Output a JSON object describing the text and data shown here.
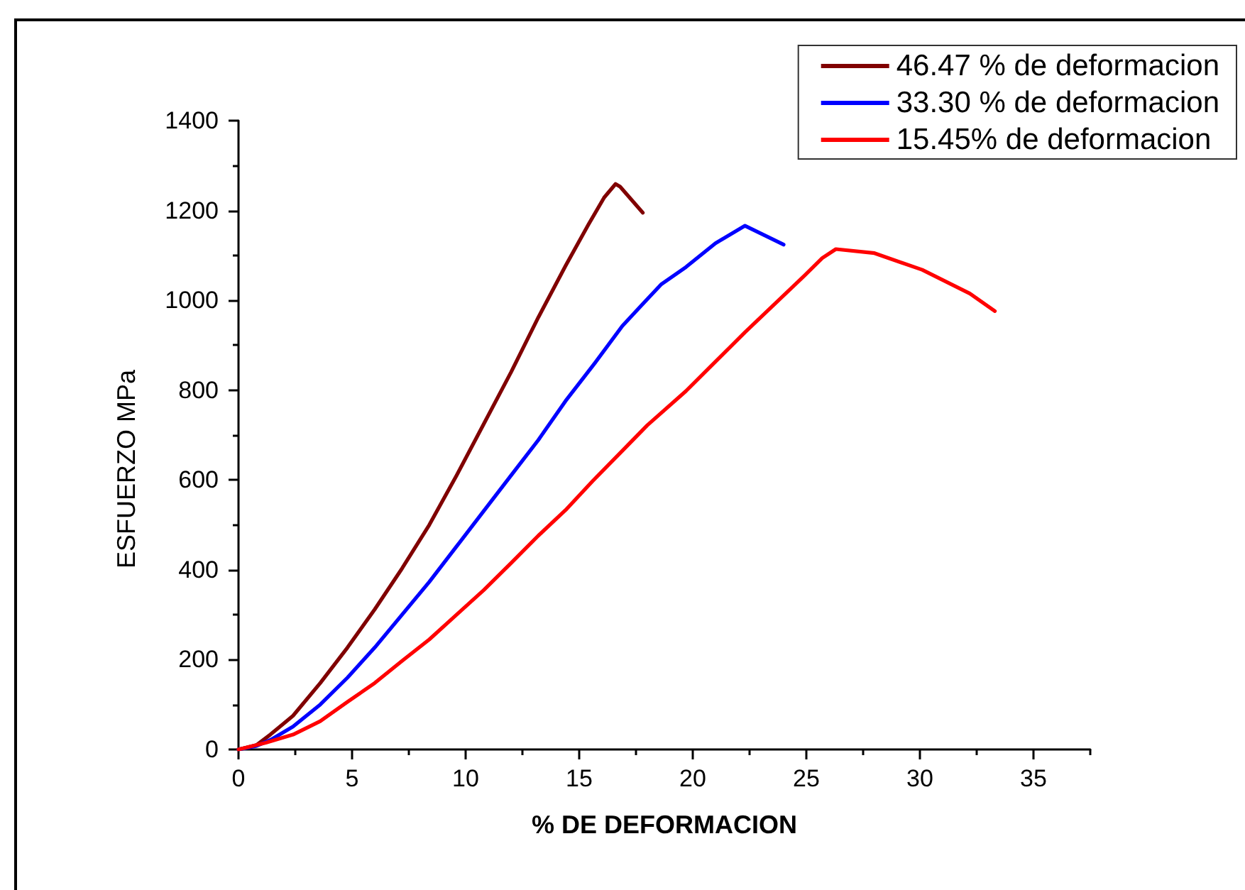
{
  "chart_data": {
    "type": "line",
    "xlabel": "% DE DEFORMACION",
    "ylabel": "ESFUERZO MPa",
    "xlim": [
      0,
      37.5
    ],
    "ylim": [
      0,
      1400
    ],
    "xticks": [
      0,
      {
        "value": 2.5,
        "label": null
      },
      5,
      {
        "value": 7.5,
        "label": null
      },
      10,
      {
        "value": 12.5,
        "label": null
      },
      15,
      {
        "value": 17.5,
        "label": null
      },
      20,
      {
        "value": 22.5,
        "label": null
      },
      25,
      {
        "value": 27.5,
        "label": null
      },
      30,
      {
        "value": 32.5,
        "label": null
      },
      35,
      {
        "value": 37.5,
        "label": null
      }
    ],
    "yticks": [
      0,
      {
        "value": 100,
        "label": null
      },
      200,
      {
        "value": 300,
        "label": null
      },
      400,
      {
        "value": 500,
        "label": null
      },
      600,
      {
        "value": 700,
        "label": null
      },
      800,
      {
        "value": 900,
        "label": null
      },
      1000,
      {
        "value": 1100,
        "label": null
      },
      1200,
      {
        "value": 1300,
        "label": null
      },
      1400
    ],
    "grid": false,
    "legend": "top right",
    "marker": "none",
    "line_style": "solid",
    "series": [
      {
        "name": "46.47 % de deformacion",
        "color": "#800000",
        "x": [
          0,
          0.8,
          1.4,
          2.4,
          3.6,
          4.8,
          6.0,
          7.2,
          8.4,
          9.6,
          10.8,
          12.0,
          13.2,
          14.4,
          15.4,
          16.1,
          16.6,
          16.8,
          17.8
        ],
        "values": [
          0,
          10,
          33,
          75,
          148,
          227,
          312,
          403,
          500,
          610,
          725,
          840,
          962,
          1077,
          1168,
          1229,
          1259,
          1253,
          1195
        ]
      },
      {
        "name": "33.30 % de deformacion",
        "color": "#0000ff",
        "x": [
          0,
          0.8,
          1.4,
          2.4,
          3.6,
          4.8,
          6.0,
          7.2,
          8.4,
          9.6,
          10.8,
          12.0,
          13.2,
          14.4,
          15.7,
          16.9,
          17.8,
          18.6,
          19.7,
          21.0,
          22.3,
          24.0
        ],
        "values": [
          0,
          8,
          21,
          51,
          100,
          160,
          227,
          300,
          373,
          452,
          531,
          610,
          689,
          776,
          861,
          943,
          992,
          1035,
          1074,
          1127,
          1166,
          1124
        ]
      },
      {
        "name": "15.45% de deformacion",
        "color": "#ff0000",
        "x": [
          0,
          1.2,
          2.4,
          3.6,
          4.8,
          6.0,
          7.2,
          8.4,
          9.6,
          10.8,
          12.0,
          13.2,
          14.4,
          15.6,
          16.8,
          18.0,
          19.7,
          22.3,
          24.9,
          25.7,
          26.3,
          28.0,
          30.1,
          32.2,
          33.3
        ],
        "values": [
          0,
          15,
          33,
          63,
          106,
          148,
          197,
          245,
          300,
          355,
          415,
          476,
          533,
          598,
          660,
          722,
          798,
          929,
          1054,
          1094,
          1114,
          1105,
          1068,
          1015,
          976
        ]
      }
    ]
  }
}
